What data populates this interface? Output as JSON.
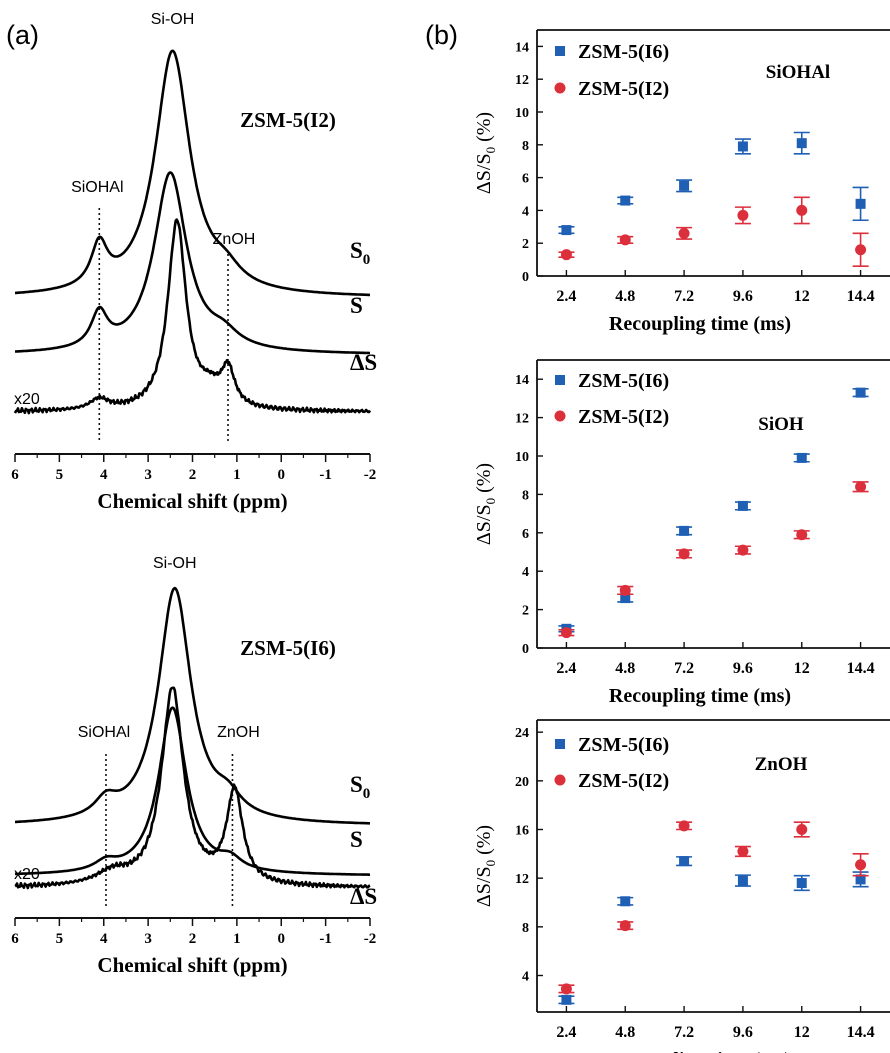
{
  "panel_labels": {
    "a": "(a)",
    "b": "(b)"
  },
  "colors": {
    "zsm16": "#1f5fb4",
    "zsm12": "#dc2f3c",
    "axis": "#111111"
  },
  "chart_data": [
    {
      "id": "nmr-i12",
      "type": "line",
      "title": "ZSM-5(I2)",
      "xlabel": "Chemical shift (ppm)",
      "xlim": [
        6,
        -2
      ],
      "x_reversed": true,
      "ticks": [
        "6",
        "5",
        "4",
        "3",
        "2",
        "1",
        "0",
        "-1",
        "-2"
      ],
      "tick_values": [
        6,
        5,
        4,
        3,
        2,
        1,
        0,
        -1,
        -2
      ],
      "peak_labels": [
        {
          "text": "Si-OH",
          "ppm": 2.45
        },
        {
          "text": "SiOHAl",
          "ppm": 4.1
        },
        {
          "text": "ZnOH",
          "ppm": 1.2
        }
      ],
      "dotted_ppm": [
        4.1,
        1.2
      ],
      "scale_label": "x20",
      "traces": [
        {
          "name": "S0",
          "sub": "0",
          "label": "S",
          "peaks": [
            [
              2.45,
              0.48,
              1.0
            ],
            [
              4.1,
              0.22,
              0.17
            ],
            [
              1.25,
              0.4,
              0.06
            ]
          ]
        },
        {
          "name": "S",
          "label": "S",
          "peaks": [
            [
              2.5,
              0.45,
              0.84
            ],
            [
              4.1,
              0.22,
              0.16
            ],
            [
              1.3,
              0.4,
              0.06
            ]
          ]
        },
        {
          "name": "ΔS",
          "label": "ΔS",
          "peaks": [
            [
              2.35,
              0.25,
              0.88
            ],
            [
              1.2,
              0.18,
              0.17
            ],
            [
              1.6,
              0.3,
              0.07
            ],
            [
              4.1,
              0.25,
              0.05
            ]
          ]
        }
      ]
    },
    {
      "id": "nmr-i16",
      "type": "line",
      "title": "ZSM-5(I6)",
      "xlabel": "Chemical shift (ppm)",
      "xlim": [
        6,
        -2
      ],
      "x_reversed": true,
      "ticks": [
        "6",
        "5",
        "4",
        "3",
        "2",
        "1",
        "0",
        "-1",
        "-2"
      ],
      "tick_values": [
        6,
        5,
        4,
        3,
        2,
        1,
        0,
        -1,
        -2
      ],
      "peak_labels": [
        {
          "text": "Si-OH",
          "ppm": 2.4
        },
        {
          "text": "SiOHAl",
          "ppm": 3.95
        },
        {
          "text": "ZnOH",
          "ppm": 1.1
        }
      ],
      "dotted_ppm": [
        3.95,
        1.1
      ],
      "scale_label": "x20",
      "traces": [
        {
          "name": "S0",
          "sub": "0",
          "label": "S",
          "peaks": [
            [
              2.4,
              0.45,
              1.0
            ],
            [
              3.95,
              0.3,
              0.07
            ],
            [
              1.2,
              0.35,
              0.07
            ]
          ]
        },
        {
          "name": "S",
          "label": "S",
          "peaks": [
            [
              2.45,
              0.38,
              0.92
            ],
            [
              3.95,
              0.3,
              0.05
            ],
            [
              1.15,
              0.3,
              0.06
            ]
          ]
        },
        {
          "name": "ΔS",
          "label": "ΔS",
          "peaks": [
            [
              2.45,
              0.3,
              0.98
            ],
            [
              1.05,
              0.22,
              0.46
            ],
            [
              3.8,
              0.45,
              0.06
            ]
          ]
        }
      ]
    },
    {
      "id": "siohal",
      "type": "scatter",
      "title": "SiOHAl",
      "xlabel": "Recoupling time (ms)",
      "ylabel": "ΔS/S0 (%)",
      "ylabel_main": "ΔS/S",
      "ylabel_sub": "0",
      "ylabel_tail": " (%)",
      "xlim": [
        1.2,
        15.6
      ],
      "ylim": [
        0,
        15
      ],
      "x": [
        2.4,
        4.8,
        7.2,
        9.6,
        12,
        14.4
      ],
      "xticks": [
        "2.4",
        "4.8",
        "7.2",
        "9.6",
        "12",
        "14.4"
      ],
      "yticks": [
        0,
        2,
        4,
        6,
        8,
        10,
        12,
        14
      ],
      "series": [
        {
          "name": "ZSM-5(I6)",
          "marker": "square",
          "values": [
            2.8,
            4.6,
            5.5,
            7.9,
            8.1,
            4.4
          ],
          "errors": [
            0.2,
            0.2,
            0.35,
            0.45,
            0.65,
            1.0
          ]
        },
        {
          "name": "ZSM-5(I2)",
          "marker": "circle",
          "values": [
            1.3,
            2.2,
            2.6,
            3.7,
            4.0,
            1.6
          ],
          "errors": [
            0.15,
            0.2,
            0.35,
            0.5,
            0.8,
            1.0
          ]
        }
      ]
    },
    {
      "id": "sioh",
      "type": "scatter",
      "title": "SiOH",
      "xlabel": "Recoupling time (ms)",
      "ylabel": "ΔS/S0 (%)",
      "ylabel_main": "ΔS/S",
      "ylabel_sub": "0",
      "ylabel_tail": " (%)",
      "xlim": [
        1.2,
        15.6
      ],
      "ylim": [
        0,
        15
      ],
      "x": [
        2.4,
        4.8,
        7.2,
        9.6,
        12,
        14.4
      ],
      "xticks": [
        "2.4",
        "4.8",
        "7.2",
        "9.6",
        "12",
        "14.4"
      ],
      "yticks": [
        0,
        2,
        4,
        6,
        8,
        10,
        12,
        14
      ],
      "series": [
        {
          "name": "ZSM-5(I6)",
          "marker": "square",
          "values": [
            1.0,
            2.6,
            6.1,
            7.4,
            9.9,
            13.3
          ],
          "errors": [
            0.15,
            0.2,
            0.2,
            0.2,
            0.2,
            0.2
          ]
        },
        {
          "name": "ZSM-5(I2)",
          "marker": "circle",
          "values": [
            0.8,
            3.0,
            4.9,
            5.1,
            5.9,
            8.4
          ],
          "errors": [
            0.15,
            0.2,
            0.2,
            0.2,
            0.2,
            0.25
          ]
        }
      ]
    },
    {
      "id": "znoh",
      "type": "scatter",
      "title": "ZnOH",
      "xlabel": "Recoupling time (ms)",
      "ylabel": "ΔS/S0 (%)",
      "ylabel_main": "ΔS/S",
      "ylabel_sub": "0",
      "ylabel_tail": " (%)",
      "xlim": [
        1.2,
        15.6
      ],
      "ylim": [
        1,
        25
      ],
      "x": [
        2.4,
        4.8,
        7.2,
        9.6,
        12,
        14.4
      ],
      "xticks": [
        "2.4",
        "4.8",
        "7.2",
        "9.6",
        "12",
        "14.4"
      ],
      "yticks": [
        4,
        8,
        12,
        16,
        20,
        24
      ],
      "series": [
        {
          "name": "ZSM-5(I6)",
          "marker": "square",
          "values": [
            2.0,
            10.1,
            13.4,
            11.8,
            11.6,
            11.9
          ],
          "errors": [
            0.3,
            0.3,
            0.35,
            0.45,
            0.6,
            0.6
          ]
        },
        {
          "name": "ZSM-5(I2)",
          "marker": "circle",
          "values": [
            2.9,
            8.1,
            16.3,
            14.2,
            16.0,
            13.1
          ],
          "errors": [
            0.3,
            0.3,
            0.3,
            0.4,
            0.6,
            0.9
          ]
        }
      ]
    }
  ]
}
